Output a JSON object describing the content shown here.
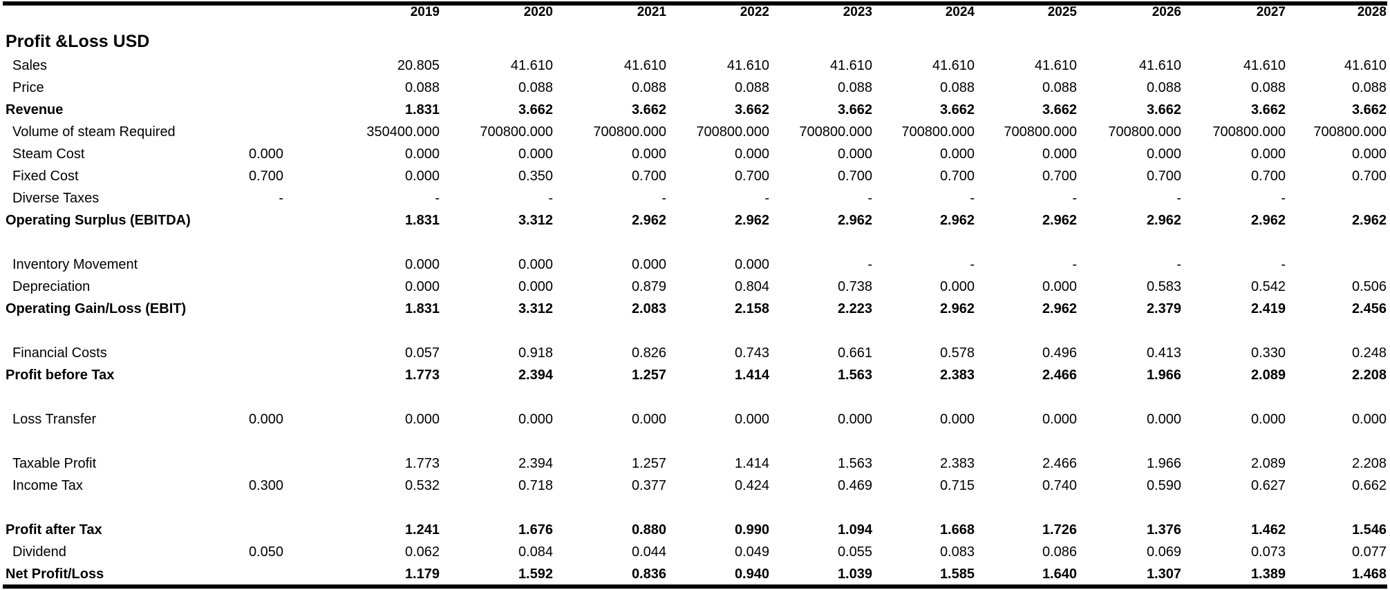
{
  "years": [
    "2019",
    "2020",
    "2021",
    "2022",
    "2023",
    "2024",
    "2025",
    "2026",
    "2027",
    "2028"
  ],
  "title": "Profit &Loss USD",
  "rows": [
    {
      "label": "Sales",
      "param": "",
      "values": [
        "20.805",
        "41.610",
        "41.610",
        "41.610",
        "41.610",
        "41.610",
        "41.610",
        "41.610",
        "41.610",
        "41.610"
      ]
    },
    {
      "label": "Price",
      "param": "",
      "values": [
        "0.088",
        "0.088",
        "0.088",
        "0.088",
        "0.088",
        "0.088",
        "0.088",
        "0.088",
        "0.088",
        "0.088"
      ]
    },
    {
      "label": "Revenue",
      "param": "",
      "values": [
        "1.831",
        "3.662",
        "3.662",
        "3.662",
        "3.662",
        "3.662",
        "3.662",
        "3.662",
        "3.662",
        "3.662"
      ]
    },
    {
      "label": "Volume of steam Required",
      "param": "",
      "values": [
        "350400.000",
        "700800.000",
        "700800.000",
        "700800.000",
        "700800.000",
        "700800.000",
        "700800.000",
        "700800.000",
        "700800.000",
        "700800.000"
      ]
    },
    {
      "label": "Steam Cost",
      "param": "0.000",
      "values": [
        "0.000",
        "0.000",
        "0.000",
        "0.000",
        "0.000",
        "0.000",
        "0.000",
        "0.000",
        "0.000",
        "0.000"
      ]
    },
    {
      "label": "Fixed Cost",
      "param": "0.700",
      "values": [
        "0.000",
        "0.350",
        "0.700",
        "0.700",
        "0.700",
        "0.700",
        "0.700",
        "0.700",
        "0.700",
        "0.700"
      ]
    },
    {
      "label": "Diverse Taxes",
      "param": "-",
      "values": [
        "-",
        "-",
        "-",
        "-",
        "-",
        "-",
        "-",
        "-",
        "-",
        ""
      ]
    },
    {
      "label": "Operating Surplus (EBITDA)",
      "param": "",
      "values": [
        "1.831",
        "3.312",
        "2.962",
        "2.962",
        "2.962",
        "2.962",
        "2.962",
        "2.962",
        "2.962",
        "2.962"
      ]
    },
    {
      "label": "Inventory Movement",
      "param": "",
      "values": [
        "0.000",
        "0.000",
        "0.000",
        "0.000",
        "-",
        "-",
        "-",
        "-",
        "-",
        ""
      ]
    },
    {
      "label": "Depreciation",
      "param": "",
      "values": [
        "0.000",
        "0.000",
        "0.879",
        "0.804",
        "0.738",
        "0.000",
        "0.000",
        "0.583",
        "0.542",
        "0.506"
      ]
    },
    {
      "label": "Operating Gain/Loss (EBIT)",
      "param": "",
      "values": [
        "1.831",
        "3.312",
        "2.083",
        "2.158",
        "2.223",
        "2.962",
        "2.962",
        "2.379",
        "2.419",
        "2.456"
      ]
    },
    {
      "label": "Financial Costs",
      "param": "",
      "values": [
        "0.057",
        "0.918",
        "0.826",
        "0.743",
        "0.661",
        "0.578",
        "0.496",
        "0.413",
        "0.330",
        "0.248"
      ]
    },
    {
      "label": "Profit before Tax",
      "param": "",
      "values": [
        "1.773",
        "2.394",
        "1.257",
        "1.414",
        "1.563",
        "2.383",
        "2.466",
        "1.966",
        "2.089",
        "2.208"
      ]
    },
    {
      "label": "Loss Transfer",
      "param": "0.000",
      "values": [
        "0.000",
        "0.000",
        "0.000",
        "0.000",
        "0.000",
        "0.000",
        "0.000",
        "0.000",
        "0.000",
        "0.000"
      ]
    },
    {
      "label": "Taxable Profit",
      "param": "",
      "values": [
        "1.773",
        "2.394",
        "1.257",
        "1.414",
        "1.563",
        "2.383",
        "2.466",
        "1.966",
        "2.089",
        "2.208"
      ]
    },
    {
      "label": "Income Tax",
      "param": "0.300",
      "values": [
        "0.532",
        "0.718",
        "0.377",
        "0.424",
        "0.469",
        "0.715",
        "0.740",
        "0.590",
        "0.627",
        "0.662"
      ]
    },
    {
      "label": "Profit after Tax",
      "param": "",
      "values": [
        "1.241",
        "1.676",
        "0.880",
        "0.990",
        "1.094",
        "1.668",
        "1.726",
        "1.376",
        "1.462",
        "1.546"
      ]
    },
    {
      "label": "Dividend",
      "param": "0.050",
      "values": [
        "0.062",
        "0.084",
        "0.044",
        "0.049",
        "0.055",
        "0.083",
        "0.086",
        "0.069",
        "0.073",
        "0.077"
      ]
    },
    {
      "label": "Net Profit/Loss",
      "param": "",
      "values": [
        "1.179",
        "1.592",
        "0.836",
        "0.940",
        "1.039",
        "1.585",
        "1.640",
        "1.307",
        "1.389",
        "1.468"
      ]
    }
  ]
}
